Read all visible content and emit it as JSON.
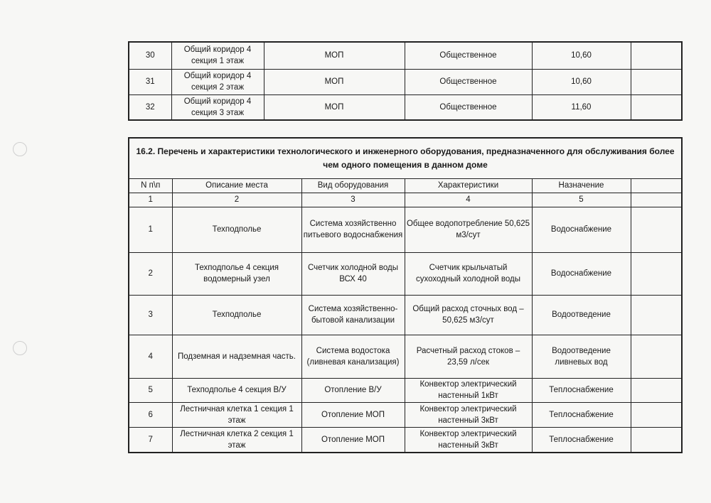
{
  "table_top": {
    "rows": [
      {
        "n": "30",
        "place": "Общий коридор 4 секция 1 этаж",
        "type": "МОП",
        "purpose": "Общественное",
        "area": "10,60",
        "extra": ""
      },
      {
        "n": "31",
        "place": "Общий коридор 4 секция 2 этаж",
        "type": "МОП",
        "purpose": "Общественное",
        "area": "10,60",
        "extra": ""
      },
      {
        "n": "32",
        "place": "Общий коридор 4 секция 3 этаж",
        "type": "МОП",
        "purpose": "Общественное",
        "area": "11,60",
        "extra": ""
      }
    ]
  },
  "table_equipment": {
    "title": "16.2. Перечень и характеристики технологического и инженерного оборудования, предназначенного для обслуживания более чем одного помещения в данном доме",
    "headers": [
      "N п\\п",
      "Описание места",
      "Вид оборудования",
      "Характеристики",
      "Назначение",
      ""
    ],
    "column_numbers": [
      "1",
      "2",
      "3",
      "4",
      "5",
      ""
    ],
    "rows": [
      {
        "n": "1",
        "place": "Техподполье",
        "equipment": "Система хозяйственно питьевого водоснабжения",
        "specs": "Общее водопотребление 50,625 м3/сут",
        "purpose": "Водоснабжение"
      },
      {
        "n": "2",
        "place": "Техподполье 4 секция водомерный узел",
        "equipment": "Счетчик холодной воды ВСХ 40",
        "specs": "Счетчик крыльчатый сухоходный холодной воды",
        "purpose": "Водоснабжение"
      },
      {
        "n": "3",
        "place": "Техподполье",
        "equipment": "Система хозяйственно-бытовой канализации",
        "specs": "Общий расход сточных вод – 50,625 м3/сут",
        "purpose": "Водоотведение"
      },
      {
        "n": "4",
        "place": "Подземная и надземная часть.",
        "equipment": "Система водостока (ливневая канализация)",
        "specs": "Расчетный расход стоков – 23,59 л/сек",
        "purpose": "Водоотведение ливневых вод"
      },
      {
        "n": "5",
        "place": "Техподполье 4 секция В/У",
        "equipment": "Отопление В/У",
        "specs": "Конвектор электрический настенный 1кВт",
        "purpose": "Теплоснабжение"
      },
      {
        "n": "6",
        "place": "Лестничная клетка 1 секция 1 этаж",
        "equipment": "Отопление МОП",
        "specs": "Конвектор электрический настенный 3кВт",
        "purpose": "Теплоснабжение"
      },
      {
        "n": "7",
        "place": "Лестничная клетка 2 секция 1 этаж",
        "equipment": "Отопление МОП",
        "specs": "Конвектор электрический настенный 3кВт",
        "purpose": "Теплоснабжение"
      }
    ]
  }
}
